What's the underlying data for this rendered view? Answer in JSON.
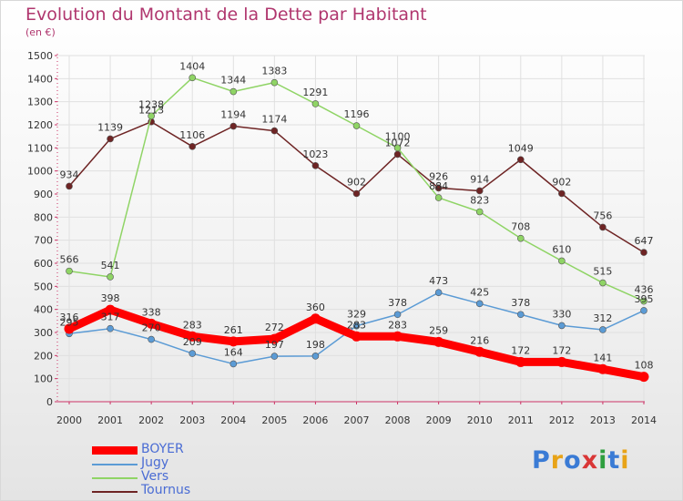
{
  "title": "Evolution du Montant de la Dette par Habitant",
  "subtitle": "(en €)",
  "logo": {
    "text": "Proxiti",
    "letter_colors": [
      "#3a7bd5",
      "#e8a317",
      "#3a7bd5",
      "#d93636",
      "#2e9e3e",
      "#3a7bd5",
      "#e8a317"
    ]
  },
  "chart_data": {
    "type": "line",
    "title": "Evolution du Montant de la Dette par Habitant",
    "subtitle": "(en €)",
    "xlabel": "",
    "ylabel": "",
    "x": [
      "2000",
      "2001",
      "2002",
      "2003",
      "2004",
      "2005",
      "2006",
      "2007",
      "2008",
      "2009",
      "2010",
      "2011",
      "2012",
      "2013",
      "2014"
    ],
    "ylim": [
      0,
      1500
    ],
    "yticks": [
      0,
      100,
      200,
      300,
      400,
      500,
      600,
      700,
      800,
      900,
      1000,
      1100,
      1200,
      1300,
      1400,
      1500
    ],
    "grid": true,
    "legend": "bottom-left",
    "series": [
      {
        "name": "Tournus",
        "color": "#6e2424",
        "values": [
          934,
          1139,
          1213,
          1106,
          1194,
          1174,
          1023,
          902,
          1072,
          926,
          914,
          1049,
          902,
          756,
          647
        ]
      },
      {
        "name": "Vers",
        "color": "#8fd465",
        "values": [
          566,
          541,
          1238,
          1404,
          1344,
          1383,
          1291,
          1196,
          1100,
          884,
          823,
          708,
          610,
          515,
          436
        ]
      },
      {
        "name": "Jugy",
        "color": "#5b9bd5",
        "values": [
          295,
          317,
          270,
          209,
          164,
          197,
          198,
          329,
          378,
          473,
          425,
          378,
          330,
          312,
          395
        ]
      },
      {
        "name": "BOYER",
        "color": "#ff0000",
        "values": [
          316,
          398,
          338,
          283,
          261,
          272,
          360,
          283,
          283,
          259,
          216,
          172,
          172,
          141,
          108
        ]
      }
    ]
  }
}
